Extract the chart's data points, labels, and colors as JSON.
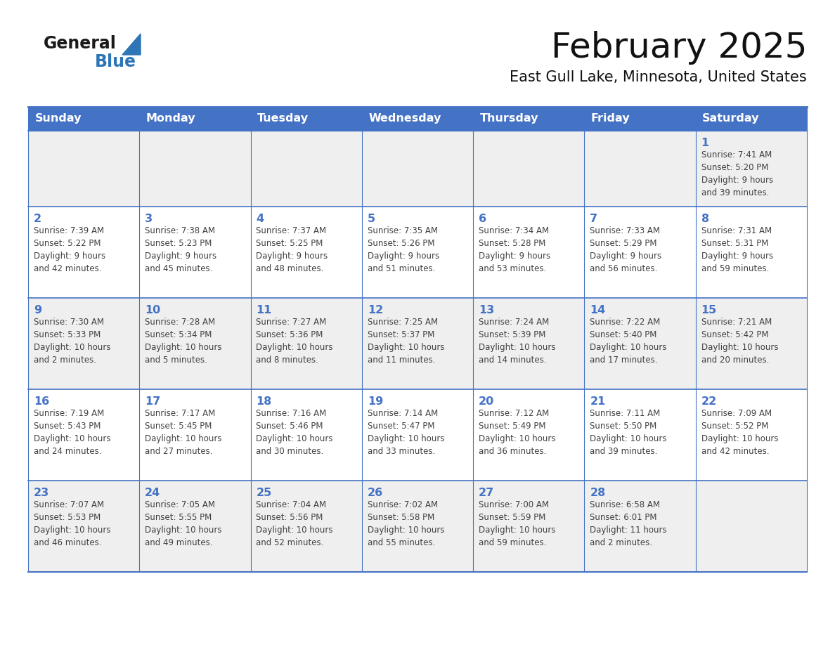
{
  "title": "February 2025",
  "subtitle": "East Gull Lake, Minnesota, United States",
  "days_of_week": [
    "Sunday",
    "Monday",
    "Tuesday",
    "Wednesday",
    "Thursday",
    "Friday",
    "Saturday"
  ],
  "header_bg": "#4472C4",
  "header_text": "#FFFFFF",
  "row_bg_odd": "#FFFFFF",
  "row_bg_even": "#EFEFEF",
  "border_color": "#4472C4",
  "day_num_color": "#4472C4",
  "text_color": "#404040",
  "logo_general_color": "#1a1a1a",
  "logo_blue_color": "#2E75B6",
  "calendar_data": [
    [
      {
        "day": null,
        "info": null
      },
      {
        "day": null,
        "info": null
      },
      {
        "day": null,
        "info": null
      },
      {
        "day": null,
        "info": null
      },
      {
        "day": null,
        "info": null
      },
      {
        "day": null,
        "info": null
      },
      {
        "day": 1,
        "info": "Sunrise: 7:41 AM\nSunset: 5:20 PM\nDaylight: 9 hours\nand 39 minutes."
      }
    ],
    [
      {
        "day": 2,
        "info": "Sunrise: 7:39 AM\nSunset: 5:22 PM\nDaylight: 9 hours\nand 42 minutes."
      },
      {
        "day": 3,
        "info": "Sunrise: 7:38 AM\nSunset: 5:23 PM\nDaylight: 9 hours\nand 45 minutes."
      },
      {
        "day": 4,
        "info": "Sunrise: 7:37 AM\nSunset: 5:25 PM\nDaylight: 9 hours\nand 48 minutes."
      },
      {
        "day": 5,
        "info": "Sunrise: 7:35 AM\nSunset: 5:26 PM\nDaylight: 9 hours\nand 51 minutes."
      },
      {
        "day": 6,
        "info": "Sunrise: 7:34 AM\nSunset: 5:28 PM\nDaylight: 9 hours\nand 53 minutes."
      },
      {
        "day": 7,
        "info": "Sunrise: 7:33 AM\nSunset: 5:29 PM\nDaylight: 9 hours\nand 56 minutes."
      },
      {
        "day": 8,
        "info": "Sunrise: 7:31 AM\nSunset: 5:31 PM\nDaylight: 9 hours\nand 59 minutes."
      }
    ],
    [
      {
        "day": 9,
        "info": "Sunrise: 7:30 AM\nSunset: 5:33 PM\nDaylight: 10 hours\nand 2 minutes."
      },
      {
        "day": 10,
        "info": "Sunrise: 7:28 AM\nSunset: 5:34 PM\nDaylight: 10 hours\nand 5 minutes."
      },
      {
        "day": 11,
        "info": "Sunrise: 7:27 AM\nSunset: 5:36 PM\nDaylight: 10 hours\nand 8 minutes."
      },
      {
        "day": 12,
        "info": "Sunrise: 7:25 AM\nSunset: 5:37 PM\nDaylight: 10 hours\nand 11 minutes."
      },
      {
        "day": 13,
        "info": "Sunrise: 7:24 AM\nSunset: 5:39 PM\nDaylight: 10 hours\nand 14 minutes."
      },
      {
        "day": 14,
        "info": "Sunrise: 7:22 AM\nSunset: 5:40 PM\nDaylight: 10 hours\nand 17 minutes."
      },
      {
        "day": 15,
        "info": "Sunrise: 7:21 AM\nSunset: 5:42 PM\nDaylight: 10 hours\nand 20 minutes."
      }
    ],
    [
      {
        "day": 16,
        "info": "Sunrise: 7:19 AM\nSunset: 5:43 PM\nDaylight: 10 hours\nand 24 minutes."
      },
      {
        "day": 17,
        "info": "Sunrise: 7:17 AM\nSunset: 5:45 PM\nDaylight: 10 hours\nand 27 minutes."
      },
      {
        "day": 18,
        "info": "Sunrise: 7:16 AM\nSunset: 5:46 PM\nDaylight: 10 hours\nand 30 minutes."
      },
      {
        "day": 19,
        "info": "Sunrise: 7:14 AM\nSunset: 5:47 PM\nDaylight: 10 hours\nand 33 minutes."
      },
      {
        "day": 20,
        "info": "Sunrise: 7:12 AM\nSunset: 5:49 PM\nDaylight: 10 hours\nand 36 minutes."
      },
      {
        "day": 21,
        "info": "Sunrise: 7:11 AM\nSunset: 5:50 PM\nDaylight: 10 hours\nand 39 minutes."
      },
      {
        "day": 22,
        "info": "Sunrise: 7:09 AM\nSunset: 5:52 PM\nDaylight: 10 hours\nand 42 minutes."
      }
    ],
    [
      {
        "day": 23,
        "info": "Sunrise: 7:07 AM\nSunset: 5:53 PM\nDaylight: 10 hours\nand 46 minutes."
      },
      {
        "day": 24,
        "info": "Sunrise: 7:05 AM\nSunset: 5:55 PM\nDaylight: 10 hours\nand 49 minutes."
      },
      {
        "day": 25,
        "info": "Sunrise: 7:04 AM\nSunset: 5:56 PM\nDaylight: 10 hours\nand 52 minutes."
      },
      {
        "day": 26,
        "info": "Sunrise: 7:02 AM\nSunset: 5:58 PM\nDaylight: 10 hours\nand 55 minutes."
      },
      {
        "day": 27,
        "info": "Sunrise: 7:00 AM\nSunset: 5:59 PM\nDaylight: 10 hours\nand 59 minutes."
      },
      {
        "day": 28,
        "info": "Sunrise: 6:58 AM\nSunset: 6:01 PM\nDaylight: 11 hours\nand 2 minutes."
      },
      {
        "day": null,
        "info": null
      }
    ]
  ]
}
